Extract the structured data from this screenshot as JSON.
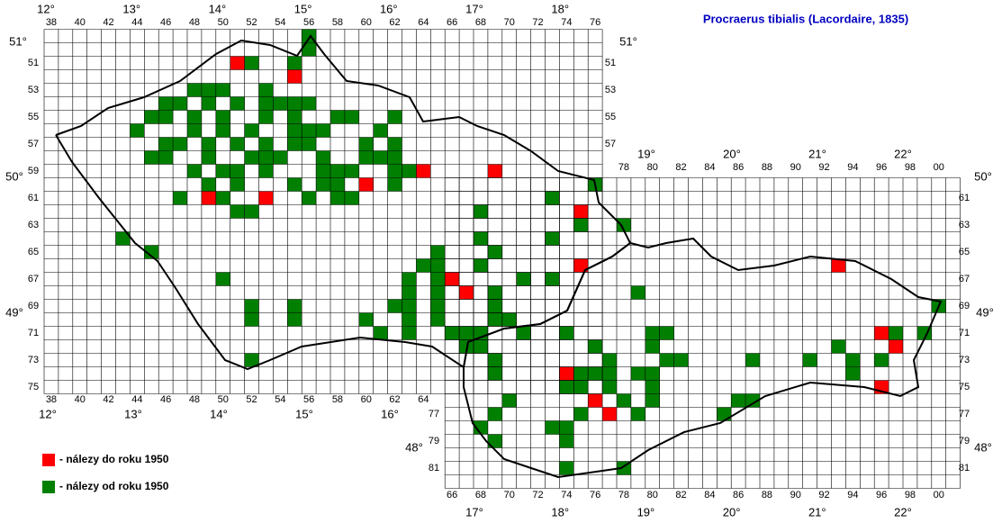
{
  "title": "Procraerus tibialis (Lacordaire, 1835)",
  "legend": [
    {
      "label": "- nálezy do roku 1950",
      "color": "#ff0000"
    },
    {
      "label": "- nálezy od roku 1950",
      "color": "#007f00"
    }
  ],
  "grid_labels": {
    "cz_top": [
      "38",
      "40",
      "42",
      "44",
      "46",
      "48",
      "50",
      "52",
      "54",
      "56",
      "58",
      "60",
      "62",
      "64",
      "66",
      "68",
      "70",
      "72",
      "74",
      "76"
    ],
    "cz_bottom": [
      "38",
      "40",
      "42",
      "44",
      "46",
      "48",
      "50",
      "52",
      "54",
      "56",
      "58",
      "60",
      "62",
      "64"
    ],
    "sk_top": [
      "78",
      "80",
      "82",
      "84",
      "86",
      "88",
      "90",
      "92",
      "94",
      "96",
      "98",
      "00"
    ],
    "sk_bottom": [
      "66",
      "68",
      "70",
      "72",
      "74",
      "76",
      "78",
      "80",
      "82",
      "84",
      "86",
      "88",
      "90",
      "92",
      "94",
      "96",
      "98",
      "00"
    ],
    "cz_left": [
      "51",
      "53",
      "55",
      "57",
      "59",
      "61",
      "63",
      "65",
      "67",
      "69",
      "71",
      "73",
      "75"
    ],
    "cz_right": [
      "51",
      "53",
      "55",
      "57"
    ],
    "sk_left": [
      "77",
      "79",
      "81"
    ],
    "sk_right": [
      "61",
      "63",
      "65",
      "67",
      "69",
      "71",
      "73",
      "75",
      "77",
      "79",
      "81"
    ]
  },
  "degree_labels": {
    "cz_top": [
      "12°",
      "13°",
      "14°",
      "15°",
      "16°",
      "17°",
      "18°"
    ],
    "cz_bottom": [
      "12°",
      "13°",
      "14°",
      "15°",
      "16°"
    ],
    "sk_top": [
      "19°",
      "20°",
      "21°",
      "22°"
    ],
    "sk_bottom": [
      "17°",
      "18°",
      "19°",
      "20°",
      "21°",
      "22°"
    ],
    "lat_left": [
      "51°",
      "50°",
      "49°",
      "48°"
    ],
    "lat_right": [
      "51°",
      "50°",
      "49°",
      "48°"
    ]
  },
  "records": {
    "before_1950": [
      [
        51,
        51
      ],
      [
        55,
        52
      ],
      [
        49,
        61
      ],
      [
        53,
        61
      ],
      [
        60,
        60
      ],
      [
        64,
        59
      ],
      [
        69,
        59
      ],
      [
        75,
        62
      ],
      [
        75,
        66
      ],
      [
        66,
        67
      ],
      [
        67,
        68
      ],
      [
        74,
        74
      ],
      [
        76,
        76
      ],
      [
        77,
        77
      ],
      [
        93,
        66
      ],
      [
        96,
        71
      ],
      [
        97,
        72
      ],
      [
        96,
        75
      ]
    ],
    "since_1950": [
      [
        56,
        49
      ],
      [
        56,
        50
      ],
      [
        52,
        51
      ],
      [
        55,
        51
      ],
      [
        48,
        53
      ],
      [
        49,
        53
      ],
      [
        50,
        53
      ],
      [
        53,
        53
      ],
      [
        46,
        54
      ],
      [
        47,
        54
      ],
      [
        49,
        54
      ],
      [
        51,
        54
      ],
      [
        53,
        54
      ],
      [
        54,
        54
      ],
      [
        55,
        54
      ],
      [
        56,
        54
      ],
      [
        45,
        55
      ],
      [
        46,
        55
      ],
      [
        48,
        55
      ],
      [
        50,
        55
      ],
      [
        53,
        55
      ],
      [
        55,
        55
      ],
      [
        58,
        55
      ],
      [
        59,
        55
      ],
      [
        62,
        55
      ],
      [
        44,
        56
      ],
      [
        48,
        56
      ],
      [
        50,
        56
      ],
      [
        52,
        56
      ],
      [
        55,
        56
      ],
      [
        56,
        56
      ],
      [
        57,
        56
      ],
      [
        61,
        56
      ],
      [
        46,
        57
      ],
      [
        47,
        57
      ],
      [
        49,
        57
      ],
      [
        51,
        57
      ],
      [
        53,
        57
      ],
      [
        55,
        57
      ],
      [
        56,
        57
      ],
      [
        60,
        57
      ],
      [
        62,
        57
      ],
      [
        45,
        58
      ],
      [
        46,
        58
      ],
      [
        49,
        58
      ],
      [
        52,
        58
      ],
      [
        53,
        58
      ],
      [
        54,
        58
      ],
      [
        57,
        58
      ],
      [
        60,
        58
      ],
      [
        61,
        58
      ],
      [
        62,
        58
      ],
      [
        48,
        59
      ],
      [
        50,
        59
      ],
      [
        51,
        59
      ],
      [
        53,
        59
      ],
      [
        57,
        59
      ],
      [
        58,
        59
      ],
      [
        59,
        59
      ],
      [
        62,
        59
      ],
      [
        63,
        59
      ],
      [
        49,
        60
      ],
      [
        51,
        60
      ],
      [
        55,
        60
      ],
      [
        57,
        60
      ],
      [
        58,
        60
      ],
      [
        62,
        60
      ],
      [
        76,
        60
      ],
      [
        47,
        61
      ],
      [
        50,
        61
      ],
      [
        56,
        61
      ],
      [
        58,
        61
      ],
      [
        59,
        61
      ],
      [
        73,
        61
      ],
      [
        51,
        62
      ],
      [
        52,
        62
      ],
      [
        68,
        62
      ],
      [
        75,
        63
      ],
      [
        78,
        63
      ],
      [
        43,
        64
      ],
      [
        68,
        64
      ],
      [
        73,
        64
      ],
      [
        45,
        65
      ],
      [
        65,
        65
      ],
      [
        69,
        65
      ],
      [
        64,
        66
      ],
      [
        65,
        66
      ],
      [
        68,
        66
      ],
      [
        50,
        67
      ],
      [
        63,
        67
      ],
      [
        65,
        67
      ],
      [
        71,
        67
      ],
      [
        73,
        67
      ],
      [
        63,
        68
      ],
      [
        65,
        68
      ],
      [
        69,
        68
      ],
      [
        79,
        68
      ],
      [
        52,
        69
      ],
      [
        55,
        69
      ],
      [
        62,
        69
      ],
      [
        63,
        69
      ],
      [
        65,
        69
      ],
      [
        69,
        69
      ],
      [
        52,
        70
      ],
      [
        55,
        70
      ],
      [
        60,
        70
      ],
      [
        63,
        70
      ],
      [
        65,
        70
      ],
      [
        69,
        70
      ],
      [
        70,
        70
      ],
      [
        61,
        71
      ],
      [
        63,
        71
      ],
      [
        66,
        71
      ],
      [
        67,
        71
      ],
      [
        68,
        71
      ],
      [
        71,
        71
      ],
      [
        74,
        71
      ],
      [
        80,
        71
      ],
      [
        81,
        71
      ],
      [
        97,
        71
      ],
      [
        99,
        71
      ],
      [
        100,
        69
      ],
      [
        67,
        72
      ],
      [
        68,
        72
      ],
      [
        76,
        72
      ],
      [
        80,
        72
      ],
      [
        93,
        72
      ],
      [
        52,
        73
      ],
      [
        69,
        73
      ],
      [
        77,
        73
      ],
      [
        81,
        73
      ],
      [
        82,
        73
      ],
      [
        87,
        73
      ],
      [
        91,
        73
      ],
      [
        94,
        73
      ],
      [
        96,
        73
      ],
      [
        69,
        74
      ],
      [
        75,
        74
      ],
      [
        76,
        74
      ],
      [
        77,
        74
      ],
      [
        79,
        74
      ],
      [
        80,
        74
      ],
      [
        94,
        74
      ],
      [
        74,
        75
      ],
      [
        75,
        75
      ],
      [
        77,
        75
      ],
      [
        80,
        75
      ],
      [
        70,
        76
      ],
      [
        78,
        76
      ],
      [
        80,
        76
      ],
      [
        86,
        76
      ],
      [
        87,
        76
      ],
      [
        69,
        77
      ],
      [
        75,
        77
      ],
      [
        79,
        77
      ],
      [
        85,
        77
      ],
      [
        68,
        78
      ],
      [
        73,
        78
      ],
      [
        74,
        78
      ],
      [
        69,
        79
      ],
      [
        74,
        79
      ],
      [
        74,
        81
      ],
      [
        78,
        81
      ]
    ]
  }
}
